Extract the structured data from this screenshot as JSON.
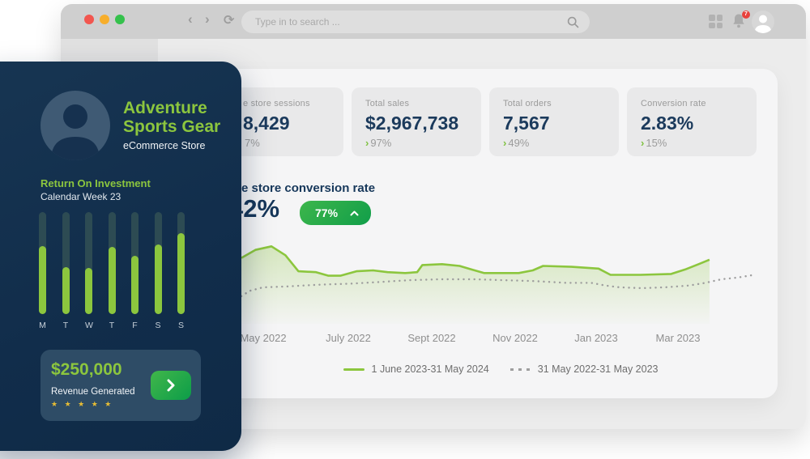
{
  "colors": {
    "navy": "#133050",
    "accent_green": "#8cc63e",
    "value_navy": "#1b3a5c",
    "button_green_gradient": [
      "#3db64b",
      "#119e4a"
    ],
    "star_gold": "#e6bc35",
    "badge_red": "#e8413c",
    "traffic_lights": [
      "#f2564f",
      "#f7ae2c",
      "#35c14c"
    ]
  },
  "browser": {
    "search_placeholder": "Type in to search ...",
    "notification_count": "7",
    "back_glyph": "‹",
    "forward_glyph": "›",
    "refresh_glyph": "⟳"
  },
  "sidebar": {
    "brand_line1": "Adventure",
    "brand_line2": "Sports Gear",
    "brand_sub": "eCommerce Store",
    "section_title": "Return On Investment",
    "section_sub": "Calendar Week 23",
    "bars": {
      "days": [
        "M",
        "T",
        "W",
        "T",
        "F",
        "S",
        "S"
      ],
      "fill_percent": [
        67,
        46,
        45,
        66,
        57,
        68,
        79
      ]
    },
    "revenue": {
      "amount": "$250,000",
      "label": "Revenue Generated",
      "stars_text": "★ ★ ★ ★ ★",
      "star_count": 5
    }
  },
  "stats": [
    {
      "label": "e store sessions",
      "value": "8,429",
      "delta": "7%",
      "delta_chevron": "",
      "note": "left edge occluded by overlay card"
    },
    {
      "label": "Total sales",
      "value": "$2,967,738",
      "delta": "97%",
      "delta_chevron": "›"
    },
    {
      "label": "Total orders",
      "value": "7,567",
      "delta": "49%",
      "delta_chevron": "›"
    },
    {
      "label": "Conversion rate",
      "value": "2.83%",
      "delta": "15%",
      "delta_chevron": "›"
    }
  ],
  "chart": {
    "title": "e store conversion rate",
    "big_value": "42%",
    "badge_value": "77%",
    "x_labels": [
      "May 2022",
      "July 2022",
      "Sept 2022",
      "Nov 2022",
      "Jan 2023",
      "Mar 2023"
    ],
    "legend": [
      {
        "label": "1 June 2023-31 May 2024",
        "style": "solid"
      },
      {
        "label": "31 May 2022-31 May 2023",
        "style": "dotted"
      }
    ]
  },
  "chart_data": {
    "type": "line",
    "x_axis_labels": [
      "May 2022",
      "July 2022",
      "Sept 2022",
      "Nov 2022",
      "Jan 2023",
      "Mar 2023"
    ],
    "y_axis": "hidden (relative height 0-100)",
    "grid": false,
    "legend_position": "bottom-center",
    "series": [
      {
        "name": "1 June 2023-31 May 2024",
        "style": "solid",
        "area": true,
        "color": "#8cc63e",
        "points": [
          [
            0,
            74
          ],
          [
            2.7,
            83
          ],
          [
            5.8,
            87
          ],
          [
            8.5,
            77
          ],
          [
            11.0,
            59
          ],
          [
            14.4,
            58
          ],
          [
            16.8,
            54
          ],
          [
            19.1,
            54
          ],
          [
            22.2,
            59
          ],
          [
            25.4,
            60
          ],
          [
            28.2,
            58
          ],
          [
            31.6,
            57
          ],
          [
            33.9,
            58
          ],
          [
            34.9,
            66
          ],
          [
            38.7,
            67
          ],
          [
            42.1,
            65
          ],
          [
            44.4,
            61
          ],
          [
            46.8,
            57
          ],
          [
            53.5,
            57
          ],
          [
            56.2,
            60
          ],
          [
            58.2,
            65
          ],
          [
            63.7,
            64
          ],
          [
            68.9,
            62
          ],
          [
            71.2,
            55
          ],
          [
            77.0,
            55
          ],
          [
            82.9,
            56
          ],
          [
            85.6,
            61
          ],
          [
            88.2,
            67
          ],
          [
            90.3,
            72
          ]
        ]
      },
      {
        "name": "31 May 2022-31 May 2023",
        "style": "dotted",
        "area": false,
        "color": "#9e9e9e",
        "points": [
          [
            0,
            31
          ],
          [
            1.6,
            37
          ],
          [
            4.2,
            41
          ],
          [
            8.9,
            42
          ],
          [
            15.2,
            44
          ],
          [
            20.7,
            45
          ],
          [
            26.7,
            47
          ],
          [
            32.4,
            49
          ],
          [
            38.3,
            50
          ],
          [
            45.1,
            50
          ],
          [
            50.5,
            49
          ],
          [
            56.5,
            48
          ],
          [
            62.6,
            46
          ],
          [
            67.5,
            46
          ],
          [
            70.2,
            43
          ],
          [
            72.9,
            41
          ],
          [
            77.3,
            40
          ],
          [
            81.7,
            41
          ],
          [
            86.4,
            43
          ],
          [
            89.5,
            46
          ],
          [
            92.6,
            50
          ],
          [
            95.8,
            52
          ],
          [
            98.9,
            55
          ]
        ]
      }
    ]
  }
}
